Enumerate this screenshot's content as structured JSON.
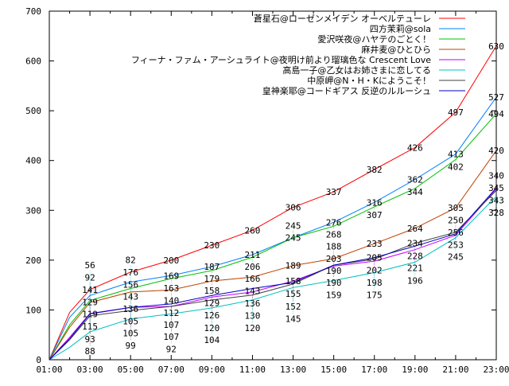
{
  "chart_data": {
    "type": "line",
    "title": "",
    "xlabel": "",
    "ylabel": "",
    "ylim": [
      0,
      700
    ],
    "yticks": [
      "0",
      "100",
      "200",
      "300",
      "400",
      "500",
      "600",
      "700"
    ],
    "xticks": [
      "01:00",
      "03:00",
      "05:00",
      "07:00",
      "09:00",
      "11:00",
      "13:00",
      "15:00",
      "17:00",
      "19:00",
      "21:00",
      "23:00"
    ],
    "x_hours": [
      1,
      2,
      3,
      5,
      7,
      9,
      11,
      13,
      15,
      17,
      19,
      21,
      23
    ],
    "labeled_hours": [
      3,
      5,
      7,
      9,
      11,
      13,
      15,
      17,
      19,
      21,
      23
    ],
    "legend_position": "top-right",
    "series": [
      {
        "name": "蒼星石@ローゼンメイデン オーベルテューレ",
        "color": "#ff0000",
        "values": [
          0,
          95,
          141,
          176,
          200,
          230,
          260,
          306,
          337,
          382,
          426,
          497,
          630
        ]
      },
      {
        "name": "四方茉莉@sola",
        "color": "#0080ff",
        "values": [
          0,
          85,
          129,
          156,
          169,
          187,
          211,
          245,
          276,
          316,
          362,
          413,
          527
        ]
      },
      {
        "name": "愛沢咲夜@ハヤテのごとく！",
        "color": "#00c000",
        "values": [
          0,
          70,
          119,
          143,
          163,
          179,
          206,
          245,
          268,
          307,
          344,
          402,
          494
        ]
      },
      {
        "name": "麻井麦@ひとひら",
        "color": "#c04000",
        "values": [
          0,
          65,
          115,
          136,
          140,
          158,
          166,
          189,
          203,
          233,
          264,
          305,
          420
        ]
      },
      {
        "name": "フィーナ・ファム・アーシュライト@夜明け前より瑠璃色な Crescent Love",
        "color": "#c000ff",
        "values": [
          0,
          45,
          93,
          105,
          107,
          126,
          136,
          158,
          188,
          198,
          221,
          250,
          343
        ]
      },
      {
        "name": "高島一子@乙女はお姉さまに恋してる",
        "color": "#00c0c0",
        "values": [
          0,
          25,
          56,
          82,
          92,
          104,
          120,
          145,
          159,
          175,
          196,
          245,
          328
        ]
      },
      {
        "name": "中原岬@N・H・Kにようこそ！",
        "color": "#404040",
        "values": [
          0,
          40,
          88,
          99,
          107,
          120,
          130,
          152,
          190,
          202,
          234,
          256,
          340
        ]
      },
      {
        "name": "皇神楽耶@コードギアス 反逆のルルーシュ",
        "color": "#0000c0",
        "values": [
          0,
          42,
          92,
          105,
          112,
          129,
          143,
          155,
          190,
          205,
          228,
          253,
          345
        ]
      }
    ]
  }
}
